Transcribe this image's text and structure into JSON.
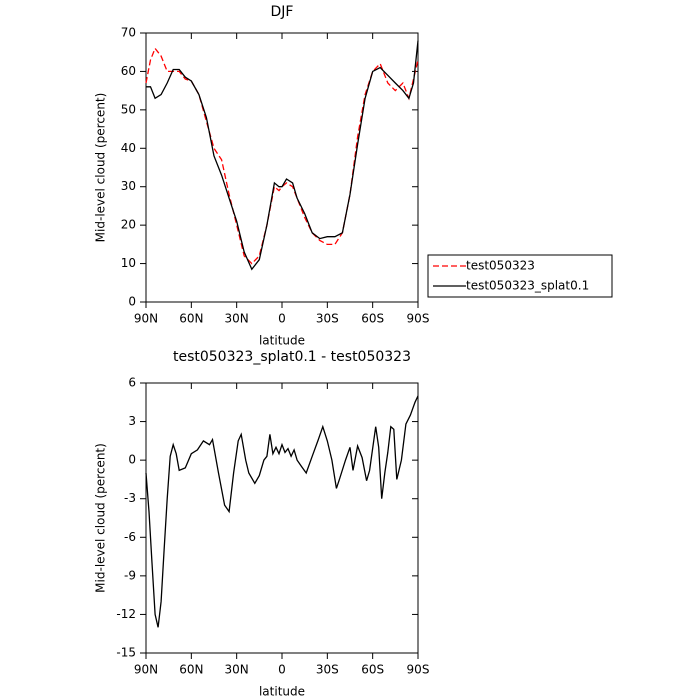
{
  "chart_data": [
    {
      "type": "line",
      "title": "DJF",
      "x_label": "latitude",
      "y_label": "Mid-level cloud (percent)",
      "x": [
        90,
        87,
        84,
        80,
        76,
        72,
        68,
        64,
        60,
        55,
        50,
        45,
        40,
        35,
        30,
        25,
        20,
        15,
        10,
        5,
        2,
        0,
        -3,
        -7,
        -10,
        -15,
        -20,
        -25,
        -30,
        -35,
        -40,
        -45,
        -50,
        -55,
        -60,
        -65,
        -70,
        -75,
        -80,
        -84,
        -87,
        -90
      ],
      "series": [
        {
          "name": "test050323",
          "color": "#ff0000",
          "linestyle": "dashed",
          "values": [
            57,
            63,
            66,
            64,
            60,
            60,
            60,
            58,
            57.5,
            54,
            47,
            40,
            37,
            28,
            20,
            12,
            10,
            12,
            20,
            30,
            29,
            30,
            31,
            30,
            27,
            22,
            18,
            16,
            15,
            15,
            18,
            28,
            43,
            54,
            60,
            62,
            57,
            55,
            57,
            53,
            58,
            63
          ]
        },
        {
          "name": "test050323_splat0.1",
          "color": "#000000",
          "linestyle": "solid",
          "values": [
            56,
            56,
            53,
            54,
            57,
            60.5,
            60.5,
            58.5,
            57.5,
            54,
            48,
            38,
            33,
            27,
            21,
            13,
            8.5,
            11,
            20,
            31,
            30,
            30,
            32,
            31,
            27,
            23,
            18,
            16.5,
            17,
            17,
            18,
            28,
            41,
            53,
            60,
            61,
            59,
            57,
            55,
            53,
            57,
            68
          ]
        }
      ],
      "xlim": [
        90,
        -90
      ],
      "xticks": [
        {
          "value": 90,
          "label": "90N"
        },
        {
          "value": 60,
          "label": "60N"
        },
        {
          "value": 30,
          "label": "30N"
        },
        0,
        {
          "value": -30,
          "label": "30S"
        },
        {
          "value": -60,
          "label": "60S"
        },
        {
          "value": -90,
          "label": "90S"
        }
      ],
      "ylim": [
        0,
        70
      ],
      "yticks": [
        0,
        10,
        20,
        30,
        40,
        50,
        60,
        70
      ],
      "legend": "right",
      "grid": false
    },
    {
      "type": "line",
      "title": "test050323_splat0.1 - test050323",
      "x_label": "latitude",
      "y_label": "Mid-level cloud (percent)",
      "x": [
        90,
        88,
        86,
        84,
        82,
        80,
        78,
        76,
        74,
        72,
        70,
        68,
        64,
        60,
        56,
        52,
        48,
        46,
        42,
        38,
        35,
        32,
        29,
        27,
        24,
        22,
        18,
        15,
        12,
        10,
        8,
        6,
        4,
        2,
        0,
        -2,
        -4,
        -6,
        -8,
        -10,
        -13,
        -16,
        -20,
        -24,
        -27,
        -30,
        -33,
        -36,
        -38,
        -42,
        -45,
        -47,
        -50,
        -53,
        -56,
        -58,
        -62,
        -64,
        -66,
        -68,
        -70,
        -72,
        -74,
        -76,
        -79,
        -82,
        -85,
        -88,
        -90
      ],
      "series": [
        {
          "color": "#000000",
          "linestyle": "solid",
          "values": [
            -1,
            -4,
            -8,
            -12,
            -13,
            -11,
            -7,
            -3,
            0.3,
            1.2,
            0.5,
            -0.8,
            -0.6,
            0.5,
            0.8,
            1.5,
            1.2,
            1.6,
            -1,
            -3.5,
            -4,
            -1,
            1.5,
            2,
            0,
            -1,
            -1.8,
            -1.2,
            0,
            0.3,
            2,
            0.5,
            1,
            0.5,
            1.2,
            0.6,
            0.9,
            0.3,
            0.8,
            0,
            -0.5,
            -1,
            0.3,
            1.6,
            2.6,
            1.5,
            0,
            -2.2,
            -1.5,
            0,
            1,
            -0.8,
            1.1,
            0.2,
            -1.6,
            -0.8,
            2.6,
            1,
            -3,
            -1,
            0.6,
            2.6,
            2.4,
            -1.5,
            0,
            2.8,
            3.5,
            4.5,
            5
          ]
        }
      ],
      "xlim": [
        90,
        -90
      ],
      "xticks": [
        {
          "value": 90,
          "label": "90N"
        },
        {
          "value": 60,
          "label": "60N"
        },
        {
          "value": 30,
          "label": "30N"
        },
        0,
        {
          "value": -30,
          "label": "30S"
        },
        {
          "value": -60,
          "label": "60S"
        },
        {
          "value": -90,
          "label": "90S"
        }
      ],
      "ylim": [
        -15,
        6
      ],
      "yticks": [
        -15,
        -12,
        -9,
        -6,
        -3,
        0,
        3,
        6
      ],
      "grid": false
    }
  ]
}
